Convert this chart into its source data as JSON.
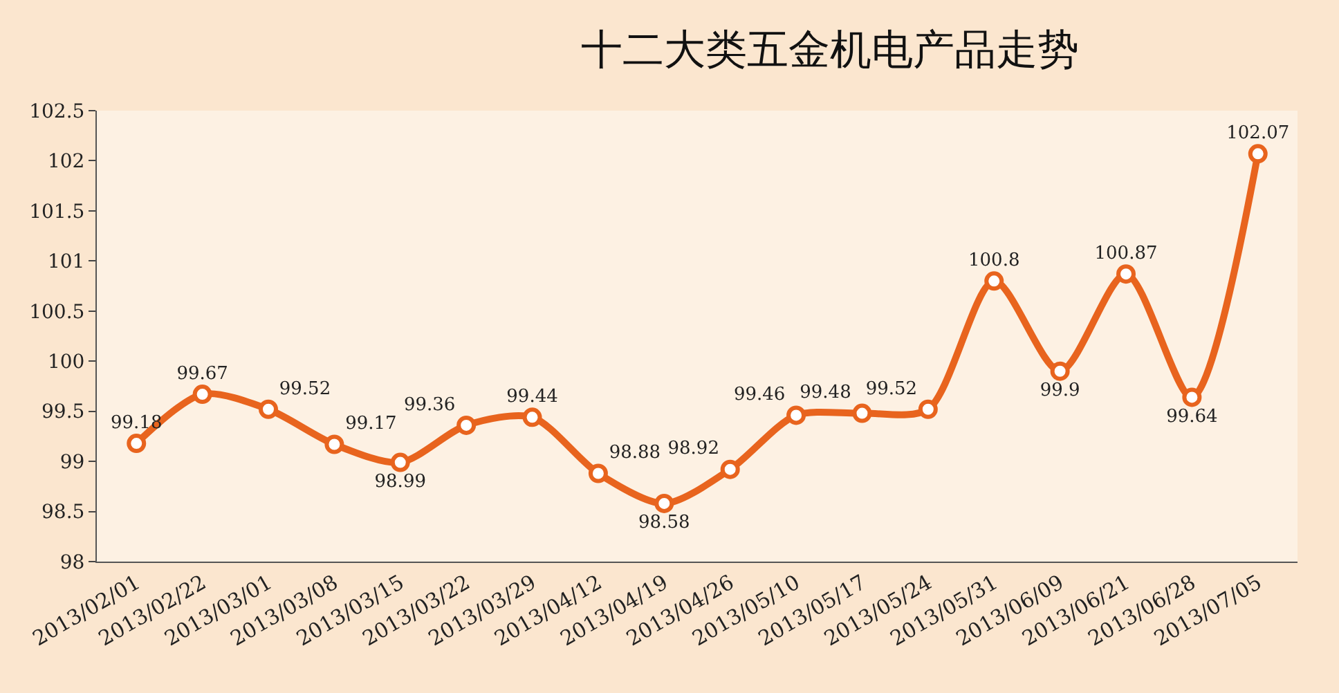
{
  "chart_data": {
    "type": "line",
    "title": "十二大类五金机电产品走势",
    "categories": [
      "2013/02/01",
      "2013/02/22",
      "2013/03/01",
      "2013/03/08",
      "2013/03/15",
      "2013/03/22",
      "2013/03/29",
      "2013/04/12",
      "2013/04/19",
      "2013/04/26",
      "2013/05/10",
      "2013/05/17",
      "2013/05/24",
      "2013/05/31",
      "2013/06/09",
      "2013/06/21",
      "2013/06/28",
      "2013/07/05"
    ],
    "series": [
      {
        "color": "#e8641e",
        "values": [
          99.18,
          99.67,
          99.52,
          99.17,
          98.99,
          99.36,
          99.44,
          98.88,
          98.58,
          98.92,
          99.46,
          99.48,
          99.52,
          100.8,
          99.9,
          100.87,
          99.64,
          102.07
        ]
      }
    ],
    "ylim": [
      98,
      102.5
    ],
    "yticks": [
      98,
      98.5,
      99,
      99.5,
      100,
      100.5,
      101,
      101.5,
      102,
      102.5
    ],
    "data_labels": true,
    "marker": "circle",
    "line_style": "solid",
    "grid": false
  }
}
